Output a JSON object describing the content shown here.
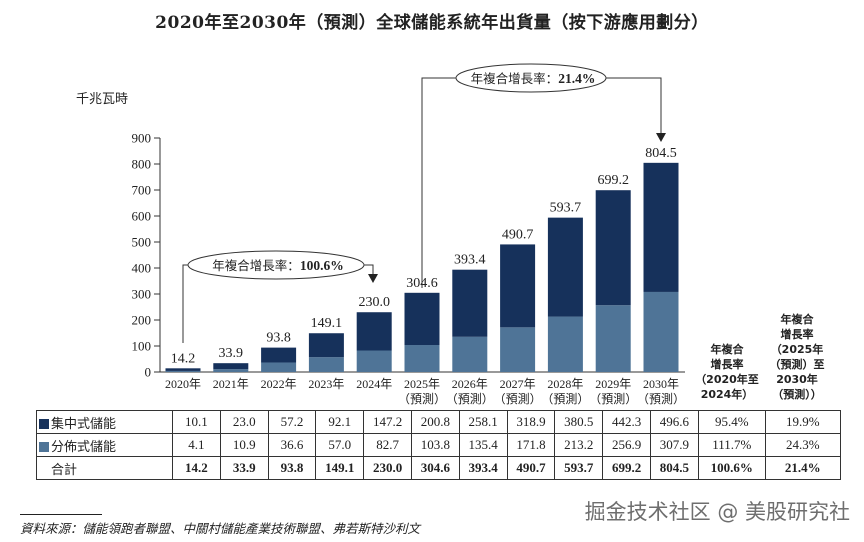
{
  "title": "2020年至2030年（預測）全球儲能系統年出貨量（按下游應用劃分）",
  "unit_label": "千兆瓦時",
  "chart_data": {
    "type": "bar",
    "stacked": true,
    "title": "2020年至2030年（預測）全球儲能系統年出貨量（按下游應用劃分）",
    "ylabel": "千兆瓦時",
    "xlabel": "",
    "ylim": [
      0,
      900
    ],
    "yticks": [
      0,
      100,
      200,
      300,
      400,
      500,
      600,
      700,
      800,
      900
    ],
    "categories": [
      {
        "year": "2020年",
        "note": ""
      },
      {
        "year": "2021年",
        "note": ""
      },
      {
        "year": "2022年",
        "note": ""
      },
      {
        "year": "2023年",
        "note": ""
      },
      {
        "year": "2024年",
        "note": ""
      },
      {
        "year": "2025年",
        "note": "（預測）"
      },
      {
        "year": "2026年",
        "note": "（預測）"
      },
      {
        "year": "2027年",
        "note": "（預測）"
      },
      {
        "year": "2028年",
        "note": "（預測）"
      },
      {
        "year": "2029年",
        "note": "（預測）"
      },
      {
        "year": "2030年",
        "note": "（預測）"
      }
    ],
    "series": [
      {
        "name": "分佈式儲能",
        "color": "#4f7497",
        "values": [
          4.1,
          10.9,
          36.6,
          57.0,
          82.7,
          103.8,
          135.4,
          171.8,
          213.2,
          256.9,
          307.9
        ]
      },
      {
        "name": "集中式儲能",
        "color": "#16315b",
        "values": [
          10.1,
          23.0,
          57.2,
          92.1,
          147.2,
          200.8,
          258.1,
          318.9,
          380.5,
          442.3,
          496.6
        ]
      }
    ],
    "totals": [
      14.2,
      33.9,
      93.8,
      149.1,
      230.0,
      304.6,
      393.4,
      490.7,
      593.7,
      699.2,
      804.5
    ],
    "total_labels": [
      "14.2",
      "33.9",
      "93.8",
      "149.1",
      "230.0",
      "304.6",
      "393.4",
      "490.7",
      "593.7",
      "699.2",
      "804.5"
    ],
    "annotations": [
      {
        "label": "年複合增長率：",
        "value": "100.6%",
        "from": "2020年",
        "to": "2024年"
      },
      {
        "label": "年複合增長率：",
        "value": "21.4%",
        "from": "2025年",
        "to": "2030年"
      }
    ],
    "grid": false,
    "legend": "table-below"
  },
  "table": {
    "cagr_headers": [
      "年複合\n增長率\n（2020年至\n2024年）",
      "年複合\n增長率\n（2025年\n（預測）至\n2030年\n（預測））"
    ],
    "rows": [
      {
        "label": "集中式儲能",
        "color": "#16315b",
        "values": [
          "10.1",
          "23.0",
          "57.2",
          "92.1",
          "147.2",
          "200.8",
          "258.1",
          "318.9",
          "380.5",
          "442.3",
          "496.6"
        ],
        "cagr1": "95.4%",
        "cagr2": "19.9%"
      },
      {
        "label": "分佈式儲能",
        "color": "#4f7497",
        "values": [
          "4.1",
          "10.9",
          "36.6",
          "57.0",
          "82.7",
          "103.8",
          "135.4",
          "171.8",
          "213.2",
          "256.9",
          "307.9"
        ],
        "cagr1": "111.7%",
        "cagr2": "24.3%"
      },
      {
        "label": "合計",
        "color": "",
        "values": [
          "14.2",
          "33.9",
          "93.8",
          "149.1",
          "230.0",
          "304.6",
          "393.4",
          "490.7",
          "593.7",
          "699.2",
          "804.5"
        ],
        "cagr1": "100.6%",
        "cagr2": "21.4%"
      }
    ]
  },
  "source": "資料來源：儲能領跑者聯盟、中關村儲能產業技術聯盟、弗若斯特沙利文",
  "watermark": "掘金技术社区 @ 美股研究社"
}
